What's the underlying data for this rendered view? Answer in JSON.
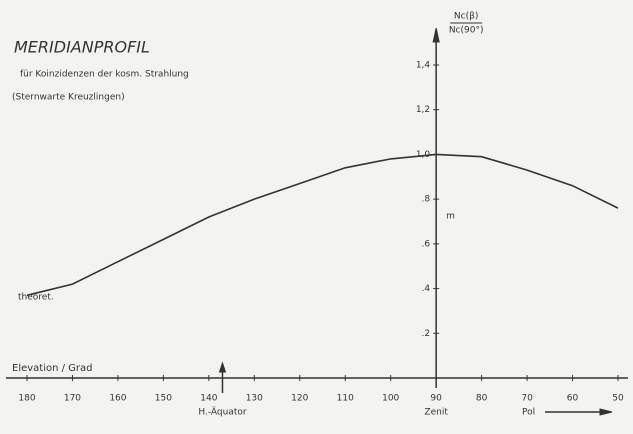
{
  "chart_data": {
    "type": "line",
    "title": "MERIDIANPROFIL",
    "subtitle": "für Koinzidenzen der kosm. Strahlung",
    "source": "(Sternwarte Kreuzlingen)",
    "x_label": "Elevation / Grad",
    "y_label_numerator": "Nc(β)",
    "y_label_denominator": "Nc(90°)",
    "annotations": {
      "equator": "H.-Äquator",
      "zenith": "Zenit",
      "pole": "Pol",
      "theory": "theoret.",
      "measured": "m"
    },
    "x": [
      180,
      170,
      160,
      150,
      140,
      130,
      120,
      110,
      100,
      90,
      80,
      70,
      60,
      50
    ],
    "values": [
      0.37,
      0.42,
      0.52,
      0.62,
      0.72,
      0.8,
      0.87,
      0.94,
      0.98,
      1.0,
      0.99,
      0.93,
      0.86,
      0.76
    ],
    "color": "#333333",
    "xlim": [
      180,
      50
    ],
    "xticks": [
      180,
      170,
      160,
      150,
      140,
      130,
      120,
      110,
      100,
      90,
      80,
      70,
      60,
      50
    ],
    "ylim": [
      0,
      1.4
    ],
    "yticks": [
      {
        "value": 0.2,
        "label": ".2"
      },
      {
        "value": 0.4,
        "label": ".4"
      },
      {
        "value": 0.6,
        "label": ".6"
      },
      {
        "value": 0.8,
        "label": ".8"
      },
      {
        "value": 1.0,
        "label": "1,0"
      },
      {
        "value": 1.2,
        "label": "1,2"
      },
      {
        "value": 1.4,
        "label": "1,4"
      }
    ],
    "y_axis_at": 90,
    "equator_at": 137
  }
}
